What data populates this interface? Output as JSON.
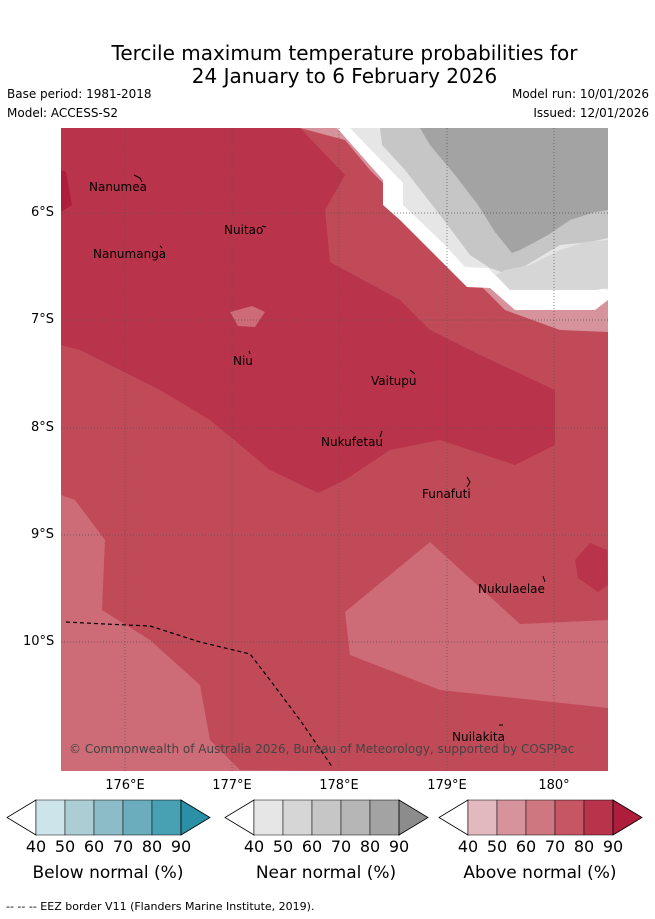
{
  "title": {
    "line1": "Tercile maximum temperature probabilities for",
    "line2": "24 January to 6 February 2026"
  },
  "meta": {
    "base_period": "Base period: 1981-2018",
    "model": "Model: ACCESS-S2",
    "model_run": "Model run: 10/01/2026",
    "issued": "Issued: 12/01/2026"
  },
  "axes": {
    "lat_labels": [
      "6°S",
      "7°S",
      "8°S",
      "9°S",
      "10°S"
    ],
    "lon_labels_top_row": [
      "176°E",
      "178°E",
      "180°"
    ],
    "lon_labels_bottom_row": [
      "177°E",
      "179°E"
    ]
  },
  "places": [
    "Nanumea",
    "Nuitao",
    "Nanumanga",
    "Niu",
    "Vaitupu",
    "Nukufetau",
    "Funafuti",
    "Nukulaelae",
    "Nuilakita"
  ],
  "credit": "© Commonwealth of Australia 2026, Bureau of Meteorology, supported by COSPPac",
  "colorbars": [
    {
      "label": "Below normal (%)",
      "ticks": [
        "40",
        "50",
        "60",
        "70",
        "80",
        "90"
      ],
      "colors": [
        "#cde5ea",
        "#abcdd3",
        "#8cbcc7",
        "#6badbc",
        "#48a1b3",
        "#2b8fa5"
      ]
    },
    {
      "label": "Near normal (%)",
      "ticks": [
        "40",
        "50",
        "60",
        "70",
        "80",
        "90"
      ],
      "colors": [
        "#e6e6e6",
        "#d6d6d6",
        "#c6c6c6",
        "#b6b6b6",
        "#a3a3a3",
        "#8c8c8c"
      ]
    },
    {
      "label": "Above normal (%)",
      "ticks": [
        "40",
        "50",
        "60",
        "70",
        "80",
        "90"
      ],
      "colors": [
        "#e3b9c0",
        "#d6939c",
        "#cf7780",
        "#c65663",
        "#b9334a",
        "#ae1d3b"
      ]
    }
  ],
  "map_colors": {
    "above_50": "#d6939c",
    "above_60": "#cd6b76",
    "above_70": "#c14a58",
    "above_80": "#b9334a",
    "above_90": "#ae1d3b",
    "near_40": "#e6e6e6",
    "near_50": "#d6d6d6",
    "near_60": "#c6c6c6",
    "near_70": "#a3a3a3",
    "white": "#ffffff"
  },
  "footnote": "--  --  -- EEZ border V11 (Flanders Marine Institute, 2019)."
}
